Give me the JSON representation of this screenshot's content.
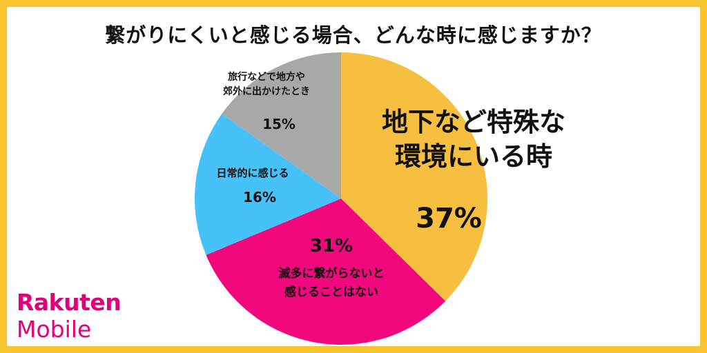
{
  "chart_data": {
    "type": "pie",
    "title": "繋がりにくいと感じる場合、どんな時に感じますか？",
    "slices": [
      {
        "label": [
          "地下など特殊な",
          "環境にいる時"
        ],
        "value": 37,
        "display": "37%",
        "color": "#F7BF3F"
      },
      {
        "label": [
          "滅多に繋がらないと",
          "感じることはない"
        ],
        "value": 31,
        "display": "31%",
        "color": "#F0087C"
      },
      {
        "label": [
          "日常的に感じる"
        ],
        "value": 16,
        "display": "16%",
        "color": "#46C2F8"
      },
      {
        "label": [
          "旅行などで地方や",
          "郊外に出かけたとき"
        ],
        "value": 15,
        "display": "15%",
        "color": "#A8A8A8"
      }
    ]
  },
  "brand": {
    "line1": "Rakuten",
    "line2": "Mobile",
    "color": "#E2007A"
  },
  "frame_color": "#F9C330"
}
